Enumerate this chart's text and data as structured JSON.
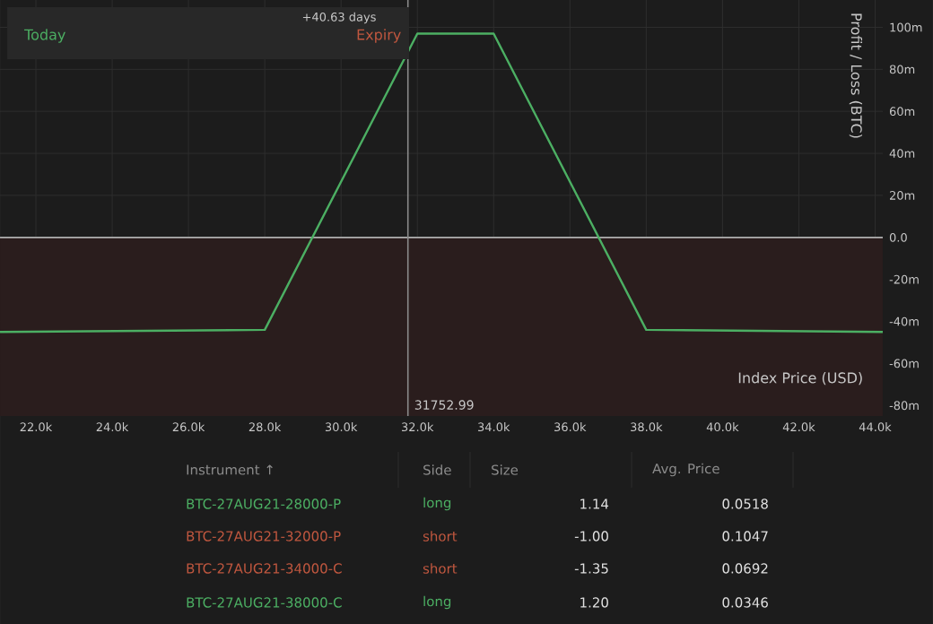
{
  "chart_data": {
    "type": "line",
    "xlabel": "Index Price   (USD)",
    "ylabel": "Profit / Loss   (BTC)",
    "x": [
      21060,
      28000,
      32000,
      34000,
      38000,
      44200
    ],
    "series": [
      {
        "color": "#4caf63",
        "values": [
          -45,
          -44,
          97,
          97,
          -44,
          -45
        ]
      }
    ],
    "xlim": [
      21060,
      44200
    ],
    "ylim": [
      -85,
      113
    ],
    "xticks": [
      {
        "value": 22000,
        "label": "22.0k"
      },
      {
        "value": 24000,
        "label": "24.0k"
      },
      {
        "value": 26000,
        "label": "26.0k"
      },
      {
        "value": 28000,
        "label": "28.0k"
      },
      {
        "value": 30000,
        "label": "30.0k"
      },
      {
        "value": 32000,
        "label": "32.0k"
      },
      {
        "value": 34000,
        "label": "34.0k"
      },
      {
        "value": 36000,
        "label": "36.0k"
      },
      {
        "value": 38000,
        "label": "38.0k"
      },
      {
        "value": 40000,
        "label": "40.0k"
      },
      {
        "value": 42000,
        "label": "42.0k"
      },
      {
        "value": 44000,
        "label": "44.0k"
      }
    ],
    "yticks": [
      {
        "value": 100,
        "label": "100m"
      },
      {
        "value": 80,
        "label": "80m"
      },
      {
        "value": 60,
        "label": "60m"
      },
      {
        "value": 40,
        "label": "40m"
      },
      {
        "value": 20,
        "label": "20m"
      },
      {
        "value": 0,
        "label": "0.0"
      },
      {
        "value": -20,
        "label": "-20m"
      },
      {
        "value": -40,
        "label": "-40m"
      },
      {
        "value": -60,
        "label": "-60m"
      },
      {
        "value": -80,
        "label": "-80m"
      }
    ],
    "grid": true,
    "marker": "none",
    "line_style": "solid",
    "ref_lines": [
      {
        "axis": "y",
        "value": 0,
        "color": "#b0b0b0"
      },
      {
        "axis": "x",
        "value": 31752.99,
        "label": "31752.99",
        "color": "#8a8a8a"
      }
    ],
    "bands": [
      {
        "axis": "y",
        "from": -85,
        "to": 0,
        "color": "#2a1d1d"
      }
    ],
    "annotations": [
      "Today",
      "Expiry",
      "+40.63 days",
      "Instrument ↑",
      "Side",
      "Size",
      "Avg. Price",
      "BTC-27AUG21-28000-P",
      "long",
      "1.14",
      "0.0518",
      "BTC-27AUG21-32000-P",
      "short",
      "-1.00",
      "0.1047",
      "BTC-27AUG21-34000-C",
      "short",
      "-1.35",
      "0.0692",
      "BTC-27AUG21-38000-C",
      "long",
      "1.20",
      "0.0346"
    ]
  }
}
